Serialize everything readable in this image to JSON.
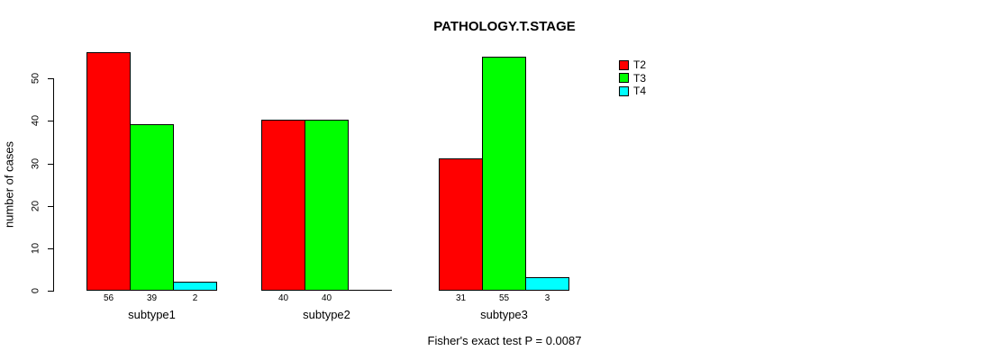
{
  "chart_data": {
    "type": "bar",
    "title": "PATHOLOGY.T.STAGE",
    "xlabel": "",
    "ylabel": "number of cases",
    "categories": [
      "subtype1",
      "subtype2",
      "subtype3"
    ],
    "series": [
      {
        "name": "T2",
        "color": "#ff0000",
        "values": [
          56,
          40,
          31
        ]
      },
      {
        "name": "T3",
        "color": "#00ff00",
        "values": [
          39,
          40,
          55
        ]
      },
      {
        "name": "T4",
        "color": "#00ffff",
        "values": [
          2,
          0,
          3
        ]
      }
    ],
    "bar_value_labels_shown": true,
    "zero_value_labels_hidden": true,
    "y_ticks": [
      "0",
      "10",
      "20",
      "30",
      "40",
      "50"
    ],
    "ylim": [
      0,
      56
    ],
    "grid": false,
    "legend_position": "right",
    "legend_entries": [
      "T2",
      "T3",
      "T4"
    ],
    "caption": "Fisher's exact test P = 0.0087",
    "axis_color": "#000000",
    "background_color": "#ffffff"
  }
}
